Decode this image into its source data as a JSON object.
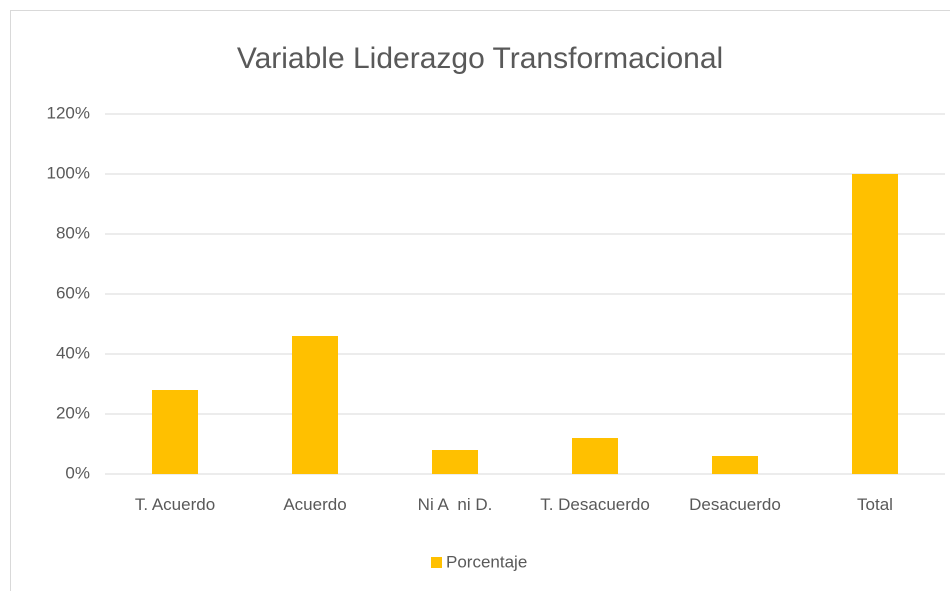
{
  "chart_data": {
    "type": "bar",
    "title": "Variable Liderazgo Transformacional",
    "categories": [
      "T. Acuerdo",
      "Acuerdo",
      "Ni A  ni D.",
      "T. Desacuerdo",
      "Desacuerdo",
      "Total"
    ],
    "series": [
      {
        "name": "Porcentaje",
        "color": "#ffc000",
        "values": [
          28,
          46,
          8,
          12,
          6,
          100
        ]
      }
    ],
    "ylim": [
      0,
      120
    ],
    "yticks": [
      {
        "value": 0,
        "label": "0%"
      },
      {
        "value": 20,
        "label": "20%"
      },
      {
        "value": 40,
        "label": "40%"
      },
      {
        "value": 60,
        "label": "60%"
      },
      {
        "value": 80,
        "label": "80%"
      },
      {
        "value": 100,
        "label": "100%"
      },
      {
        "value": 120,
        "label": "120%"
      }
    ],
    "grid": true,
    "legend": "bottom"
  }
}
